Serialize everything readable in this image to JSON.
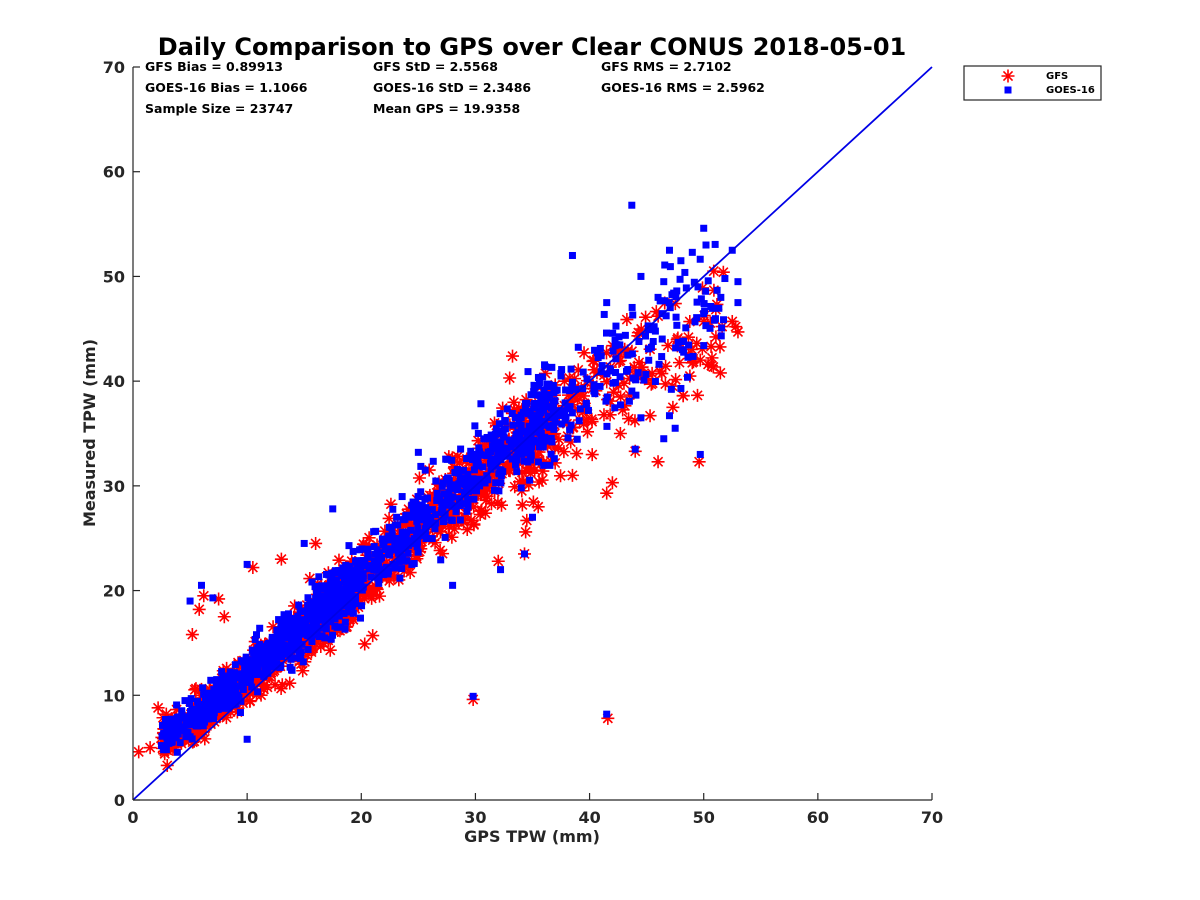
{
  "chart_data": {
    "type": "scatter",
    "title": "Daily Comparison to GPS over Clear CONUS 2018-05-01",
    "xlabel": "GPS TPW (mm)",
    "ylabel": "Measured TPW (mm)",
    "xlim": [
      0,
      70
    ],
    "ylim": [
      0,
      70
    ],
    "xticks": [
      "0",
      "10",
      "20",
      "30",
      "40",
      "50",
      "60",
      "70"
    ],
    "yticks": [
      "0",
      "10",
      "20",
      "30",
      "40",
      "50",
      "60",
      "70"
    ],
    "grid": false,
    "legend_position": "outside-top-right",
    "stats": [
      [
        "GFS Bias = 0.89913",
        "GFS StD = 2.5568",
        "GFS RMS = 2.7102"
      ],
      [
        "GOES-16 Bias = 1.1066",
        "GOES-16 StD = 2.3486",
        "GOES-16 RMS = 2.5962"
      ],
      [
        "Sample Size = 23747",
        "Mean GPS = 19.9358",
        ""
      ]
    ],
    "reference_line": {
      "label": "1:1",
      "from": [
        0,
        0
      ],
      "to": [
        70,
        70
      ],
      "color": "#0000e6"
    },
    "series": [
      {
        "name": "GFS",
        "marker": "asterisk",
        "color": "#ff0000",
        "cloud_centerline": [
          [
            1,
            4.8
          ],
          [
            5,
            7.2
          ],
          [
            10,
            11.5
          ],
          [
            15,
            16.2
          ],
          [
            20,
            20.8
          ],
          [
            25,
            25.7
          ],
          [
            30,
            30.6
          ],
          [
            35,
            34.8
          ],
          [
            40,
            38.6
          ],
          [
            45,
            42.2
          ],
          [
            50,
            44.5
          ]
        ],
        "outliers": [
          [
            0.5,
            4.6
          ],
          [
            1.5,
            5.0
          ],
          [
            2.2,
            8.8
          ],
          [
            3,
            3.3
          ],
          [
            5.2,
            15.8
          ],
          [
            5.8,
            18.2
          ],
          [
            6.2,
            19.5
          ],
          [
            7.5,
            19.2
          ],
          [
            8,
            17.5
          ],
          [
            10.5,
            22.2
          ],
          [
            13,
            23
          ],
          [
            16,
            24.5
          ],
          [
            18,
            20
          ],
          [
            20.3,
            14.9
          ],
          [
            21,
            15.7
          ],
          [
            29.8,
            9.6
          ],
          [
            32,
            22.8
          ],
          [
            33,
            40.3
          ],
          [
            34.3,
            23.5
          ],
          [
            34.4,
            25.6
          ],
          [
            34.5,
            26.7
          ],
          [
            35.5,
            28
          ],
          [
            38.5,
            31
          ],
          [
            41.5,
            29.3
          ],
          [
            42,
            30.3
          ],
          [
            42.7,
            35
          ],
          [
            44,
            33.3
          ],
          [
            45.3,
            36.7
          ],
          [
            46,
            32.3
          ],
          [
            47.3,
            37.5
          ],
          [
            48.2,
            38.6
          ],
          [
            49.6,
            32.3
          ],
          [
            50,
            45.7
          ],
          [
            52.5,
            45.7
          ],
          [
            52.8,
            45.2
          ],
          [
            53,
            44.7
          ],
          [
            41.6,
            7.8
          ]
        ]
      },
      {
        "name": "GOES-16",
        "marker": "square",
        "color": "#0000ff",
        "cloud_centerline": [
          [
            1,
            5.0
          ],
          [
            5,
            7.6
          ],
          [
            10,
            12.0
          ],
          [
            15,
            16.8
          ],
          [
            20,
            21.5
          ],
          [
            25,
            26.5
          ],
          [
            30,
            31.5
          ],
          [
            35,
            35.7
          ],
          [
            40,
            39.8
          ],
          [
            45,
            43.6
          ],
          [
            50,
            47.0
          ]
        ],
        "outliers": [
          [
            2.5,
            5.2
          ],
          [
            5,
            19
          ],
          [
            6,
            20.5
          ],
          [
            7,
            19.3
          ],
          [
            10,
            22.5
          ],
          [
            15,
            24.5
          ],
          [
            17.5,
            27.8
          ],
          [
            25.6,
            31.5
          ],
          [
            25,
            33.2
          ],
          [
            28,
            20.5
          ],
          [
            29.8,
            9.9
          ],
          [
            32.2,
            22
          ],
          [
            34.3,
            23.5
          ],
          [
            35,
            27
          ],
          [
            38.5,
            52
          ],
          [
            41.5,
            47.5
          ],
          [
            43.7,
            56.8
          ],
          [
            44.5,
            50
          ],
          [
            46,
            48
          ],
          [
            46.5,
            49.5
          ],
          [
            47,
            52.5
          ],
          [
            48,
            51.5
          ],
          [
            49,
            52.3
          ],
          [
            49.5,
            49
          ],
          [
            50.2,
            53
          ],
          [
            50,
            54.6
          ],
          [
            51.5,
            48
          ],
          [
            52.5,
            52.5
          ],
          [
            53,
            49.5
          ],
          [
            53,
            47.5
          ],
          [
            47.5,
            35.5
          ],
          [
            48,
            39.3
          ],
          [
            44,
            33.5
          ],
          [
            44.5,
            36.5
          ],
          [
            46.5,
            34.5
          ],
          [
            47,
            36.7
          ],
          [
            49.7,
            33
          ],
          [
            41.5,
            8.2
          ],
          [
            10,
            5.8
          ]
        ]
      }
    ]
  }
}
